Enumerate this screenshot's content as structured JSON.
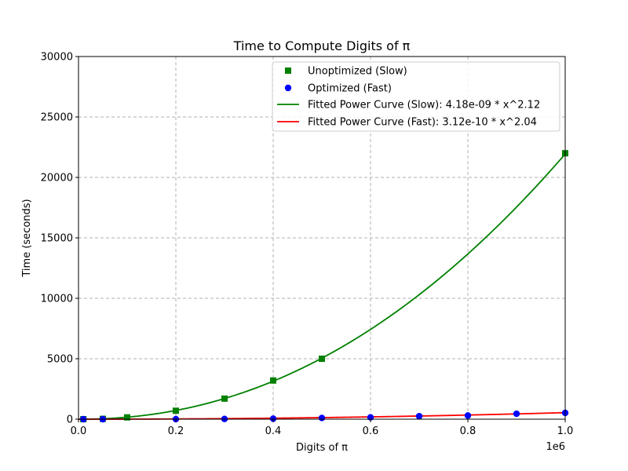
{
  "chart_data": {
    "type": "scatter",
    "title": "Time to Compute Digits of π",
    "xlabel": "Digits of π",
    "ylabel": "Time (seconds)",
    "x_offset_label": "1e6",
    "xlim": [
      0,
      1000000
    ],
    "ylim": [
      0,
      30000
    ],
    "xticks": [
      0,
      200000,
      400000,
      600000,
      800000,
      1000000
    ],
    "xtick_labels": [
      "0.0",
      "0.2",
      "0.4",
      "0.6",
      "0.8",
      "1.0"
    ],
    "yticks": [
      0,
      5000,
      10000,
      15000,
      20000,
      25000,
      30000
    ],
    "ytick_labels": [
      "0",
      "5000",
      "10000",
      "15000",
      "20000",
      "25000",
      "30000"
    ],
    "grid": true,
    "legend_position": "top-right",
    "series": [
      {
        "name": "Unoptimized (Slow)",
        "kind": "scatter",
        "marker": "square",
        "color": "#008000",
        "x": [
          10000,
          50000,
          100000,
          200000,
          300000,
          400000,
          500000,
          1000000
        ],
        "y": [
          0,
          30,
          150,
          700,
          1700,
          3200,
          5000,
          22000
        ]
      },
      {
        "name": "Optimized (Fast)",
        "kind": "scatter",
        "marker": "circle",
        "color": "#0000ff",
        "x": [
          10000,
          50000,
          200000,
          300000,
          400000,
          500000,
          600000,
          700000,
          800000,
          900000,
          1000000
        ],
        "y": [
          0,
          0,
          5,
          20,
          40,
          100,
          150,
          250,
          300,
          450,
          520
        ]
      },
      {
        "name": "Fitted Power Curve (Slow): 4.18e-09 * x^2.12",
        "kind": "line",
        "color": "#008000",
        "coef": 4.18e-09,
        "exponent": 2.12
      },
      {
        "name": "Fitted Power Curve (Fast): 3.12e-10 * x^2.04",
        "kind": "line",
        "color": "#ff0000",
        "coef": 3.12e-10,
        "exponent": 2.04
      }
    ]
  }
}
